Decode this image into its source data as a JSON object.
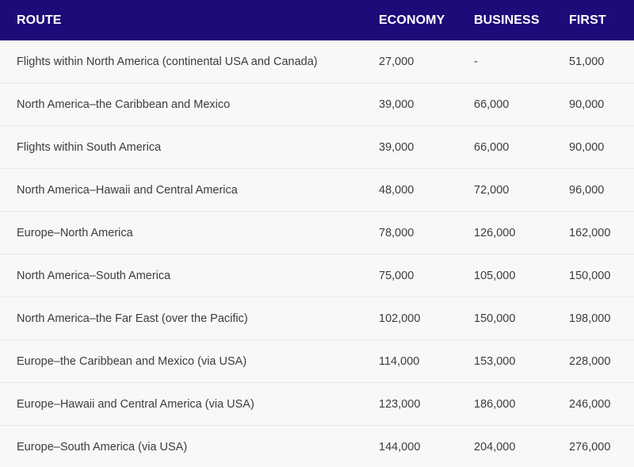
{
  "headers": {
    "route": "ROUTE",
    "economy": "ECONOMY",
    "business": "BUSINESS",
    "first": "FIRST"
  },
  "rows": [
    {
      "route": "Flights within North America (continental USA and Canada)",
      "economy": "27,000",
      "business": "-",
      "first": "51,000"
    },
    {
      "route": "North America–the Caribbean and Mexico",
      "economy": "39,000",
      "business": "66,000",
      "first": "90,000"
    },
    {
      "route": "Flights within South America",
      "economy": "39,000",
      "business": "66,000",
      "first": "90,000"
    },
    {
      "route": "North America–Hawaii and Central America",
      "economy": "48,000",
      "business": "72,000",
      "first": "96,000"
    },
    {
      "route": "Europe–North America",
      "economy": "78,000",
      "business": "126,000",
      "first": "162,000"
    },
    {
      "route": "North America–South America",
      "economy": "75,000",
      "business": "105,000",
      "first": "150,000"
    },
    {
      "route": "North America–the Far East (over the Pacific)",
      "economy": "102,000",
      "business": "150,000",
      "first": "198,000"
    },
    {
      "route": "Europe–the Caribbean and Mexico (via USA)",
      "economy": "114,000",
      "business": "153,000",
      "first": "228,000"
    },
    {
      "route": "Europe–Hawaii and Central America (via USA)",
      "economy": "123,000",
      "business": "186,000",
      "first": "246,000"
    },
    {
      "route": "Europe–South America (via USA)",
      "economy": "144,000",
      "business": "204,000",
      "first": "276,000"
    }
  ],
  "colors": {
    "header_bg": "#1f0a7a",
    "header_text": "#ffffff",
    "row_bg": "#f8f8f8",
    "row_text": "#3c3c3c"
  }
}
